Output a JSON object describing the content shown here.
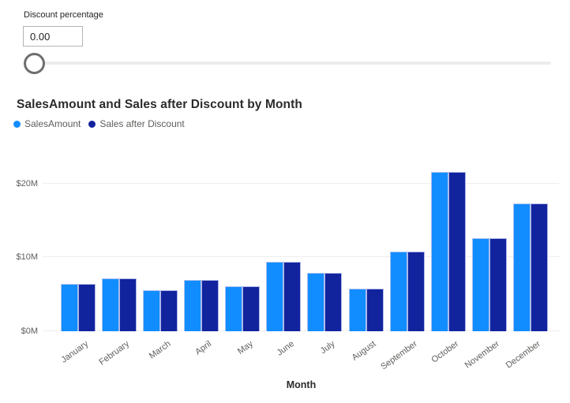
{
  "slicer": {
    "label": "Discount percentage",
    "value": "0.00"
  },
  "chart": {
    "title": "SalesAmount and Sales after Discount by Month",
    "x_axis_title": "Month",
    "legend": [
      {
        "label": "SalesAmount",
        "color": "#118DFF"
      },
      {
        "label": "Sales after Discount",
        "color": "#12239E"
      }
    ]
  },
  "chart_data": {
    "type": "bar",
    "title": "SalesAmount and Sales after Discount by Month",
    "xlabel": "Month",
    "ylabel": "",
    "units": "USD millions",
    "categories": [
      "January",
      "February",
      "March",
      "April",
      "May",
      "June",
      "July",
      "August",
      "September",
      "October",
      "November",
      "December"
    ],
    "series": [
      {
        "name": "SalesAmount",
        "color": "#118DFF",
        "values": [
          6.4,
          7.2,
          5.5,
          6.9,
          6.1,
          9.4,
          7.9,
          5.8,
          10.8,
          21.6,
          12.6,
          17.3
        ]
      },
      {
        "name": "Sales after Discount",
        "color": "#12239E",
        "values": [
          6.4,
          7.2,
          5.5,
          6.9,
          6.1,
          9.4,
          7.9,
          5.8,
          10.8,
          21.6,
          12.6,
          17.3
        ]
      }
    ],
    "ylim": [
      0,
      22.9
    ],
    "y_tick_values": [
      0,
      10,
      20
    ],
    "y_tick_labels": [
      "$0M",
      "$10M",
      "$20M"
    ],
    "grid": "dotted-horizontal",
    "legend_position": "top-left"
  }
}
